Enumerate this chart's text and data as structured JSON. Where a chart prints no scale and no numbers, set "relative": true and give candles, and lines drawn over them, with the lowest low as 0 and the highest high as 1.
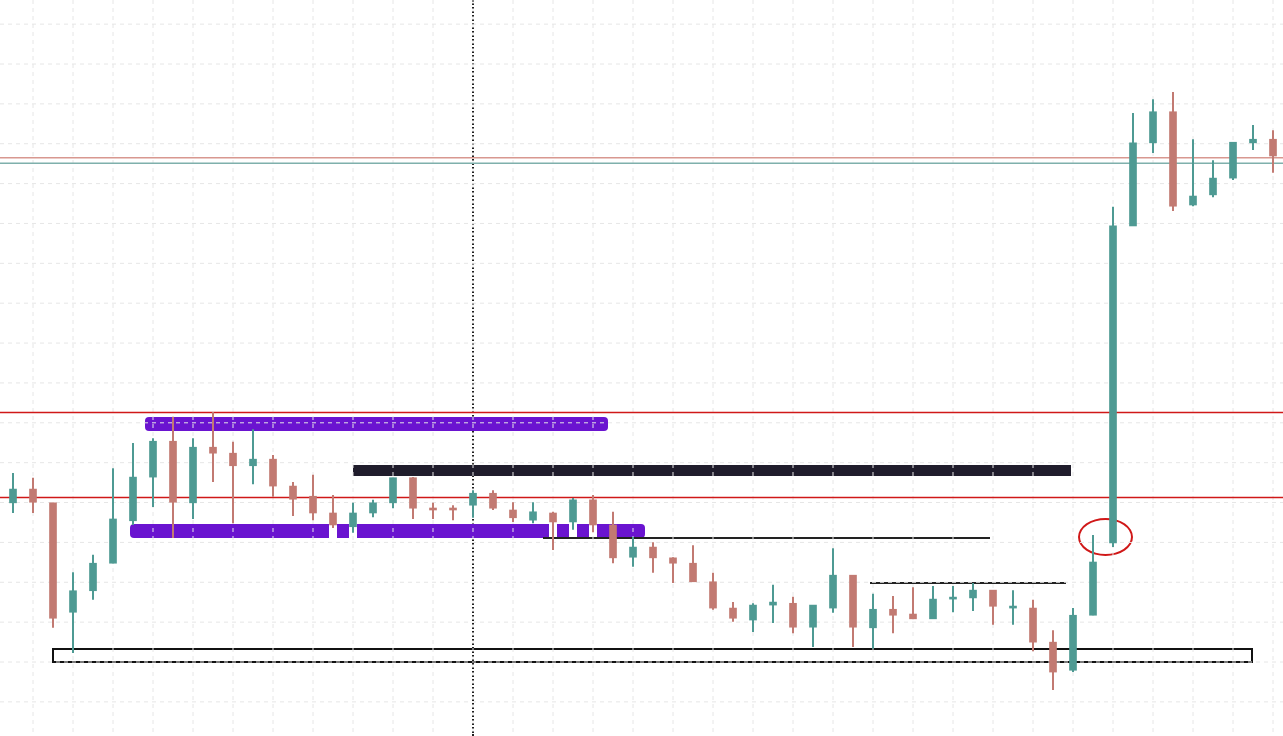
{
  "chart_data": {
    "type": "candlestick",
    "relative": true,
    "grid": true,
    "legend": false,
    "categories": [
      null,
      null,
      null,
      null,
      null,
      null,
      null,
      null,
      null,
      null,
      null,
      null,
      null,
      null,
      null,
      null,
      null,
      null,
      null,
      null,
      null,
      null,
      null,
      null,
      null,
      null,
      null,
      null,
      null,
      null,
      null,
      null,
      null,
      null,
      null,
      null,
      null,
      null,
      null,
      null,
      null,
      null,
      null,
      null,
      null,
      null,
      null,
      null,
      null,
      null,
      null,
      null,
      null,
      null,
      null,
      null,
      null,
      null,
      null,
      null,
      null,
      null,
      null,
      null
    ],
    "ohlc": [
      [
        0.313,
        0.363,
        0.296,
        0.336
      ],
      [
        0.336,
        0.355,
        0.296,
        0.314
      ],
      [
        0.313,
        0.313,
        0.104,
        0.12
      ],
      [
        0.13,
        0.197,
        0.062,
        0.166
      ],
      [
        0.166,
        0.226,
        0.151,
        0.212
      ],
      [
        0.212,
        0.371,
        0.212,
        0.286
      ],
      [
        0.283,
        0.413,
        0.276,
        0.356
      ],
      [
        0.356,
        0.421,
        0.306,
        0.416
      ],
      [
        0.416,
        0.457,
        0.254,
        0.314
      ],
      [
        0.313,
        0.421,
        0.286,
        0.406
      ],
      [
        0.406,
        0.465,
        0.348,
        0.396
      ],
      [
        0.396,
        0.415,
        0.279,
        0.375
      ],
      [
        0.375,
        0.436,
        0.344,
        0.386
      ],
      [
        0.386,
        0.393,
        0.323,
        0.341
      ],
      [
        0.341,
        0.348,
        0.291,
        0.319
      ],
      [
        0.324,
        0.36,
        0.284,
        0.296
      ],
      [
        0.296,
        0.326,
        0.271,
        0.276
      ],
      [
        0.273,
        0.313,
        0.263,
        0.296
      ],
      [
        0.296,
        0.318,
        0.289,
        0.313
      ],
      [
        0.313,
        0.355,
        0.304,
        0.355
      ],
      [
        0.355,
        0.356,
        0.286,
        0.304
      ],
      [
        0.304,
        0.313,
        0.286,
        0.301
      ],
      [
        0.301,
        0.309,
        0.284,
        0.301
      ],
      [
        0.309,
        0.334,
        0.288,
        0.329
      ],
      [
        0.329,
        0.334,
        0.301,
        0.304
      ],
      [
        0.301,
        0.314,
        0.281,
        0.288
      ],
      [
        0.284,
        0.314,
        0.279,
        0.298
      ],
      [
        0.296,
        0.298,
        0.234,
        0.281
      ],
      [
        0.281,
        0.321,
        0.268,
        0.318
      ],
      [
        0.318,
        0.326,
        0.264,
        0.276
      ],
      [
        0.276,
        0.298,
        0.212,
        0.221
      ],
      [
        0.222,
        0.256,
        0.206,
        0.239
      ],
      [
        0.239,
        0.247,
        0.196,
        0.221
      ],
      [
        0.221,
        0.222,
        0.179,
        0.212
      ],
      [
        0.212,
        0.242,
        0.181,
        0.181
      ],
      [
        0.181,
        0.196,
        0.134,
        0.137
      ],
      [
        0.137,
        0.147,
        0.114,
        0.12
      ],
      [
        0.117,
        0.145,
        0.097,
        0.142
      ],
      [
        0.142,
        0.176,
        0.112,
        0.147
      ],
      [
        0.145,
        0.156,
        0.095,
        0.105
      ],
      [
        0.105,
        0.142,
        0.072,
        0.142
      ],
      [
        0.137,
        0.237,
        0.129,
        0.192
      ],
      [
        0.192,
        0.192,
        0.072,
        0.105
      ],
      [
        0.104,
        0.161,
        0.069,
        0.135
      ],
      [
        0.135,
        0.157,
        0.095,
        0.125
      ],
      [
        0.127,
        0.172,
        0.119,
        0.119
      ],
      [
        0.119,
        0.174,
        0.119,
        0.152
      ],
      [
        0.152,
        0.174,
        0.13,
        0.154
      ],
      [
        0.154,
        0.179,
        0.132,
        0.167
      ],
      [
        0.167,
        0.167,
        0.109,
        0.14
      ],
      [
        0.137,
        0.167,
        0.109,
        0.137
      ],
      [
        0.137,
        0.151,
        0.065,
        0.08
      ],
      [
        0.08,
        0.1,
        0,
        0.03
      ],
      [
        0.033,
        0.137,
        0.03,
        0.125
      ],
      [
        0.125,
        0.259,
        0.125,
        0.214
      ],
      [
        0.246,
        0.808,
        0.239,
        0.776
      ],
      [
        0.776,
        0.965,
        0.776,
        0.915
      ],
      [
        0.915,
        0.988,
        0.898,
        0.967
      ],
      [
        0.967,
        1,
        0.801,
        0.809
      ],
      [
        0.811,
        0.921,
        0.809,
        0.826
      ],
      [
        0.828,
        0.886,
        0.824,
        0.856
      ],
      [
        0.856,
        0.916,
        0.853,
        0.916
      ],
      [
        0.915,
        0.945,
        0.903,
        0.921
      ],
      [
        0.921,
        0.936,
        0.865,
        0.893
      ]
    ],
    "colors": [
      "#4e9a93",
      "#c27a72",
      "#c27a72",
      "#4e9a93",
      "#4e9a93",
      "#4e9a93",
      "#4e9a93",
      "#4e9a93",
      "#c27a72",
      "#4e9a93",
      "#c27a72",
      "#c27a72",
      "#4e9a93",
      "#c27a72",
      "#c27a72",
      "#c27a72",
      "#c27a72",
      "#4e9a93",
      "#4e9a93",
      "#4e9a93",
      "#c27a72",
      "#c27a72",
      "#c27a72",
      "#4e9a93",
      "#c27a72",
      "#c27a72",
      "#4e9a93",
      "#c27a72",
      "#4e9a93",
      "#c27a72",
      "#c27a72",
      "#4e9a93",
      "#c27a72",
      "#c27a72",
      "#c27a72",
      "#c27a72",
      "#c27a72",
      "#4e9a93",
      "#4e9a93",
      "#c27a72",
      "#4e9a93",
      "#4e9a93",
      "#c27a72",
      "#4e9a93",
      "#c27a72",
      "#c27a72",
      "#4e9a93",
      "#4e9a93",
      "#4e9a93",
      "#c27a72",
      "#4e9a93",
      "#c27a72",
      "#c27a72",
      "#4e9a93",
      "#4e9a93",
      "#4e9a93",
      "#4e9a93",
      "#4e9a93",
      "#c27a72",
      "#4e9a93",
      "#4e9a93",
      "#4e9a93",
      "#4e9a93",
      "#c27a72"
    ],
    "ref_lines": [
      {
        "axis": "y",
        "value": 0.89,
        "color": "#d89890"
      },
      {
        "axis": "y",
        "value": 0.881,
        "color": "#7fb0ac"
      },
      {
        "axis": "y",
        "value": 0.464,
        "color": "#d01818"
      },
      {
        "axis": "y",
        "value": 0.322,
        "color": "#d01818"
      }
    ]
  }
}
